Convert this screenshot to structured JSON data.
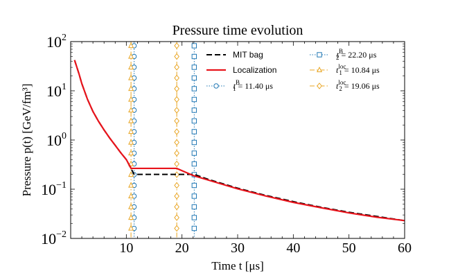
{
  "chart_data": {
    "type": "line",
    "title": "Pressure time evolution",
    "xlabel": "Time t [μs]",
    "ylabel": "Pressure p(t) [GeV/fm³]",
    "xlim": [
      0,
      60
    ],
    "ylim_log10": [
      -2,
      2
    ],
    "yscale": "log",
    "x_ticks": [
      10,
      20,
      30,
      40,
      50,
      60
    ],
    "x_tick_labels": [
      "10",
      "20",
      "30",
      "40",
      "50",
      "60"
    ],
    "y_ticks_exp": [
      -2,
      -1,
      0,
      1,
      2
    ],
    "y_tick_labels": [
      {
        "base": "10",
        "exp": "−2"
      },
      {
        "base": "10",
        "exp": "−1"
      },
      {
        "base": "10",
        "exp": "0"
      },
      {
        "base": "10",
        "exp": "1"
      },
      {
        "base": "10",
        "exp": "2"
      }
    ],
    "series": [
      {
        "name": "MIT bag",
        "style": "dashed",
        "color": "#000000",
        "x": [
          0.7,
          1,
          1.5,
          2,
          3,
          4,
          5,
          6,
          7,
          8,
          9,
          10,
          11.4,
          15,
          20,
          22.2,
          25,
          30,
          35,
          40,
          45,
          50,
          55,
          60
        ],
        "y": [
          42,
          33,
          22,
          14,
          6.8,
          3.8,
          2.4,
          1.6,
          1.1,
          0.78,
          0.55,
          0.4,
          0.2,
          0.2,
          0.2,
          0.2,
          0.155,
          0.105,
          0.075,
          0.056,
          0.043,
          0.034,
          0.028,
          0.023
        ]
      },
      {
        "name": "Localization",
        "style": "solid",
        "color": "#e8131b",
        "x": [
          0.7,
          1,
          1.5,
          2,
          3,
          4,
          5,
          6,
          7,
          8,
          9,
          10,
          10.84,
          15,
          19.06,
          22,
          25,
          30,
          35,
          40,
          45,
          50,
          55,
          60
        ],
        "y": [
          42,
          33,
          22,
          14,
          6.8,
          3.8,
          2.4,
          1.6,
          1.1,
          0.78,
          0.55,
          0.4,
          0.265,
          0.265,
          0.265,
          0.19,
          0.15,
          0.102,
          0.073,
          0.054,
          0.042,
          0.033,
          0.027,
          0.023
        ]
      }
    ],
    "vlines": [
      {
        "name": "t1B",
        "x": 11.4,
        "color": "#1f77b4",
        "marker": "circle",
        "style": "dotted",
        "label": {
          "sym": "t",
          "sub": "1",
          "sup": "B",
          "value": " = 11.40 μs"
        }
      },
      {
        "name": "t2B",
        "x": 22.2,
        "color": "#1f77b4",
        "marker": "square",
        "style": "dotted",
        "label": {
          "sym": "t",
          "sub": "2",
          "sup": "B",
          "value": " = 22.20 μs"
        }
      },
      {
        "name": "t1loc",
        "x": 10.84,
        "color": "#e8a420",
        "marker": "triangle",
        "style": "dashdot",
        "label": {
          "sym": "t",
          "sub": "1",
          "sup": "loc",
          "value": " = 10.84 μs"
        }
      },
      {
        "name": "t2loc",
        "x": 19.06,
        "color": "#e8a420",
        "marker": "diamond",
        "style": "dashdot",
        "label": {
          "sym": "t",
          "sub": "2",
          "sup": "loc",
          "value": " = 19.06 μs"
        }
      }
    ],
    "legend": {
      "placement": "top-right",
      "columns": 2
    }
  }
}
